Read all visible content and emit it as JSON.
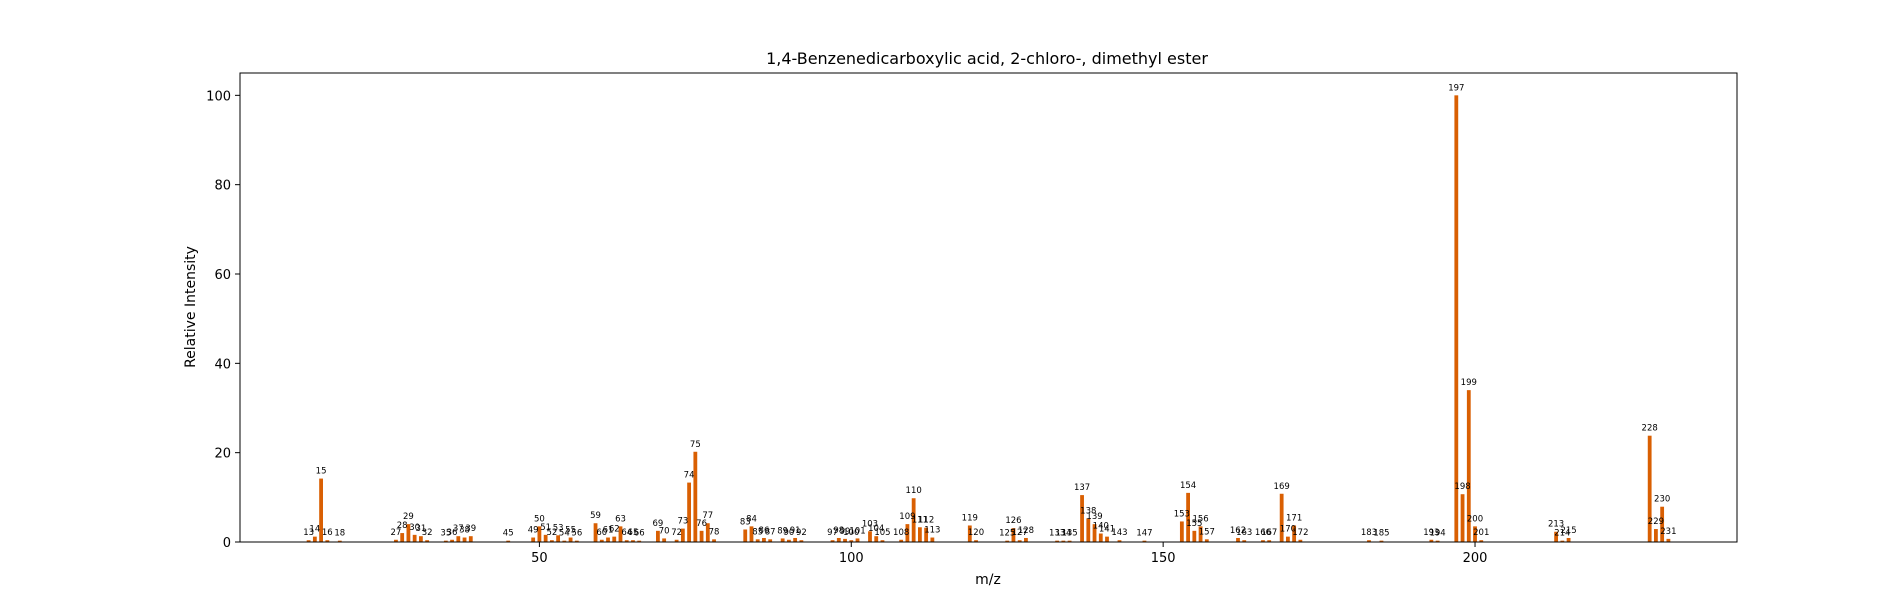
{
  "chart_data": {
    "type": "bar",
    "title": "1,4-Benzenedicarboxylic acid, 2-chloro-, dimethyl ester",
    "xlabel": "m/z",
    "ylabel": "Relative Intensity",
    "xlim": [
      2,
      242
    ],
    "ylim": [
      0,
      105
    ],
    "xticks": [
      50,
      100,
      150,
      200
    ],
    "yticks": [
      0,
      20,
      40,
      60,
      80,
      100
    ],
    "grid": false,
    "color": "#d95f02",
    "x": [
      13,
      14,
      15,
      16,
      18,
      27,
      28,
      29,
      30,
      31,
      32,
      35,
      36,
      37,
      38,
      39,
      45,
      49,
      50,
      51,
      52,
      53,
      54,
      55,
      56,
      59,
      60,
      61,
      62,
      63,
      64,
      65,
      66,
      69,
      70,
      72,
      73,
      74,
      75,
      76,
      77,
      78,
      83,
      84,
      85,
      86,
      87,
      89,
      90,
      91,
      92,
      97,
      98,
      99,
      100,
      101,
      103,
      104,
      105,
      108,
      109,
      110,
      111,
      112,
      113,
      119,
      120,
      125,
      126,
      127,
      128,
      133,
      134,
      135,
      137,
      138,
      139,
      140,
      141,
      143,
      147,
      153,
      154,
      155,
      156,
      157,
      162,
      163,
      166,
      167,
      169,
      170,
      171,
      172,
      183,
      185,
      193,
      194,
      198,
      197,
      199,
      200,
      201,
      213,
      214,
      215,
      228,
      229,
      230,
      231
    ],
    "values": [
      0.4,
      1.2,
      14.2,
      0.4,
      0.3,
      0.5,
      2.0,
      4.0,
      1.6,
      1.3,
      0.4,
      0.3,
      0.5,
      1.3,
      1.0,
      1.3,
      0.3,
      1.0,
      3.5,
      1.6,
      0.4,
      1.5,
      0.3,
      1.0,
      0.3,
      4.2,
      0.5,
      1.0,
      1.2,
      3.5,
      0.4,
      0.4,
      0.3,
      2.5,
      0.8,
      0.5,
      3.0,
      13.3,
      20.2,
      2.5,
      4.2,
      0.6,
      2.8,
      3.5,
      0.6,
      0.9,
      0.6,
      0.8,
      0.5,
      0.9,
      0.4,
      0.4,
      0.9,
      0.7,
      0.4,
      0.8,
      2.4,
      1.3,
      0.4,
      0.5,
      4.0,
      9.8,
      3.3,
      3.2,
      1.0,
      3.7,
      0.4,
      0.3,
      3.1,
      0.4,
      0.9,
      0.3,
      0.3,
      0.3,
      10.5,
      5.3,
      4.0,
      1.9,
      1.2,
      0.4,
      0.3,
      4.6,
      11.0,
      2.5,
      3.5,
      0.6,
      0.9,
      0.4,
      0.4,
      0.4,
      10.8,
      1.2,
      3.7,
      0.5,
      0.4,
      0.3,
      0.5,
      0.3,
      10.7,
      100.0,
      34.0,
      3.5,
      0.4,
      2.3,
      0.3,
      0.9,
      23.8,
      2.9,
      7.9,
      0.7
    ]
  }
}
